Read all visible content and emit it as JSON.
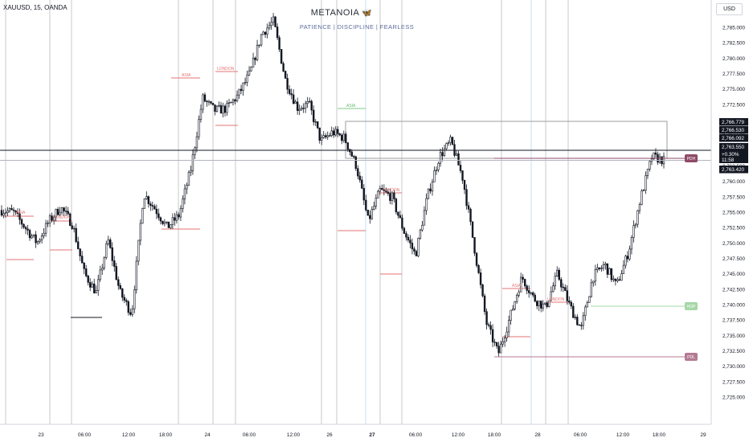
{
  "header": {
    "symbol": "XAUUSD, 15, OANDA",
    "brand": "METANOIA",
    "brand_icon": "moth-icon",
    "motto": "PATIENCE  |  DISCIPLINE  |  FEARLESS"
  },
  "price_scale": {
    "currency": "USD",
    "ticks": [
      "2,785.000",
      "2,782.500",
      "2,780.000",
      "2,777.500",
      "2,775.000",
      "2,772.500",
      "2,770.000",
      "2,767.500",
      "2,765.000",
      "2,762.500",
      "2,760.000",
      "2,757.500",
      "2,755.000",
      "2,752.500",
      "2,750.000",
      "2,747.500",
      "2,745.000",
      "2,742.500",
      "2,740.000",
      "2,737.500",
      "2,735.000",
      "2,732.500",
      "2,730.000",
      "2,727.500",
      "2,725.000"
    ],
    "price_badges": [
      {
        "text": "2,766.779",
        "value": 2766.779,
        "color": "#131722"
      },
      {
        "text": "2,766.530",
        "value": 2766.53,
        "color": "#131722"
      },
      {
        "text": "2,766.092",
        "value": 2766.092,
        "color": "#131722"
      },
      {
        "text": "2,763.550",
        "value": 2763.55,
        "color": "#131722"
      }
    ],
    "last_price": {
      "price": "2,763.420",
      "value": 2763.42,
      "change": "+0.30%",
      "countdown": "11:58"
    }
  },
  "time_axis": {
    "labels": [
      "23",
      "06:00",
      "12:00",
      "18:00",
      "24",
      "06:00",
      "12:00",
      "26",
      "27",
      "06:00",
      "12:00",
      "18:00",
      "28",
      "06:00",
      "12:00",
      "18:00",
      "29"
    ]
  },
  "session_labels": {
    "asia": "ASIA",
    "london": "LONDON"
  },
  "level_tags": {
    "pdh": "PDH",
    "hop": "HOP",
    "pdl": "PDL"
  },
  "colors": {
    "up": "#131722",
    "down": "#131722",
    "session_line": "#e57373",
    "asia_green": "#81c784",
    "pdh": "#8e4a68",
    "hop": "#a5d6a7",
    "pdl": "#b47a94"
  },
  "chart_data": {
    "type": "line",
    "title": "XAUUSD, 15, OANDA",
    "xlabel": "",
    "ylabel": "USD",
    "ylim": [
      2723.5,
      2789.5
    ],
    "x_ticks": [
      "23",
      "06:00",
      "12:00",
      "18:00",
      "24",
      "06:00",
      "12:00",
      "26",
      "27",
      "06:00",
      "12:00",
      "18:00",
      "28",
      "06:00",
      "12:00",
      "18:00",
      "29"
    ],
    "series": [
      {
        "values": [
          2755.3,
          2755.0,
          2752.5,
          2750.0,
          2753.5,
          2755.8,
          2753.0,
          2745.0,
          2742.0,
          2750.5,
          2742.0,
          2738.5,
          2758.0,
          2755.5,
          2752.5,
          2754.5,
          2762.0,
          2773.5,
          2771.5,
          2771.8,
          2774.0,
          2777.5,
          2784.0,
          2786.0,
          2776.5,
          2772.0,
          2772.5,
          2766.5,
          2768.0,
          2767.0,
          2762.5,
          2753.5,
          2758.5,
          2757.5,
          2752.0,
          2748.0,
          2757.5,
          2764.0,
          2766.5,
          2760.5,
          2749.0,
          2737.0,
          2732.0,
          2738.0,
          2744.5,
          2741.0,
          2739.5,
          2745.0,
          2740.0,
          2736.0,
          2744.5,
          2746.5,
          2743.0,
          2748.5,
          2757.0,
          2764.0,
          2763.4
        ]
      }
    ]
  }
}
